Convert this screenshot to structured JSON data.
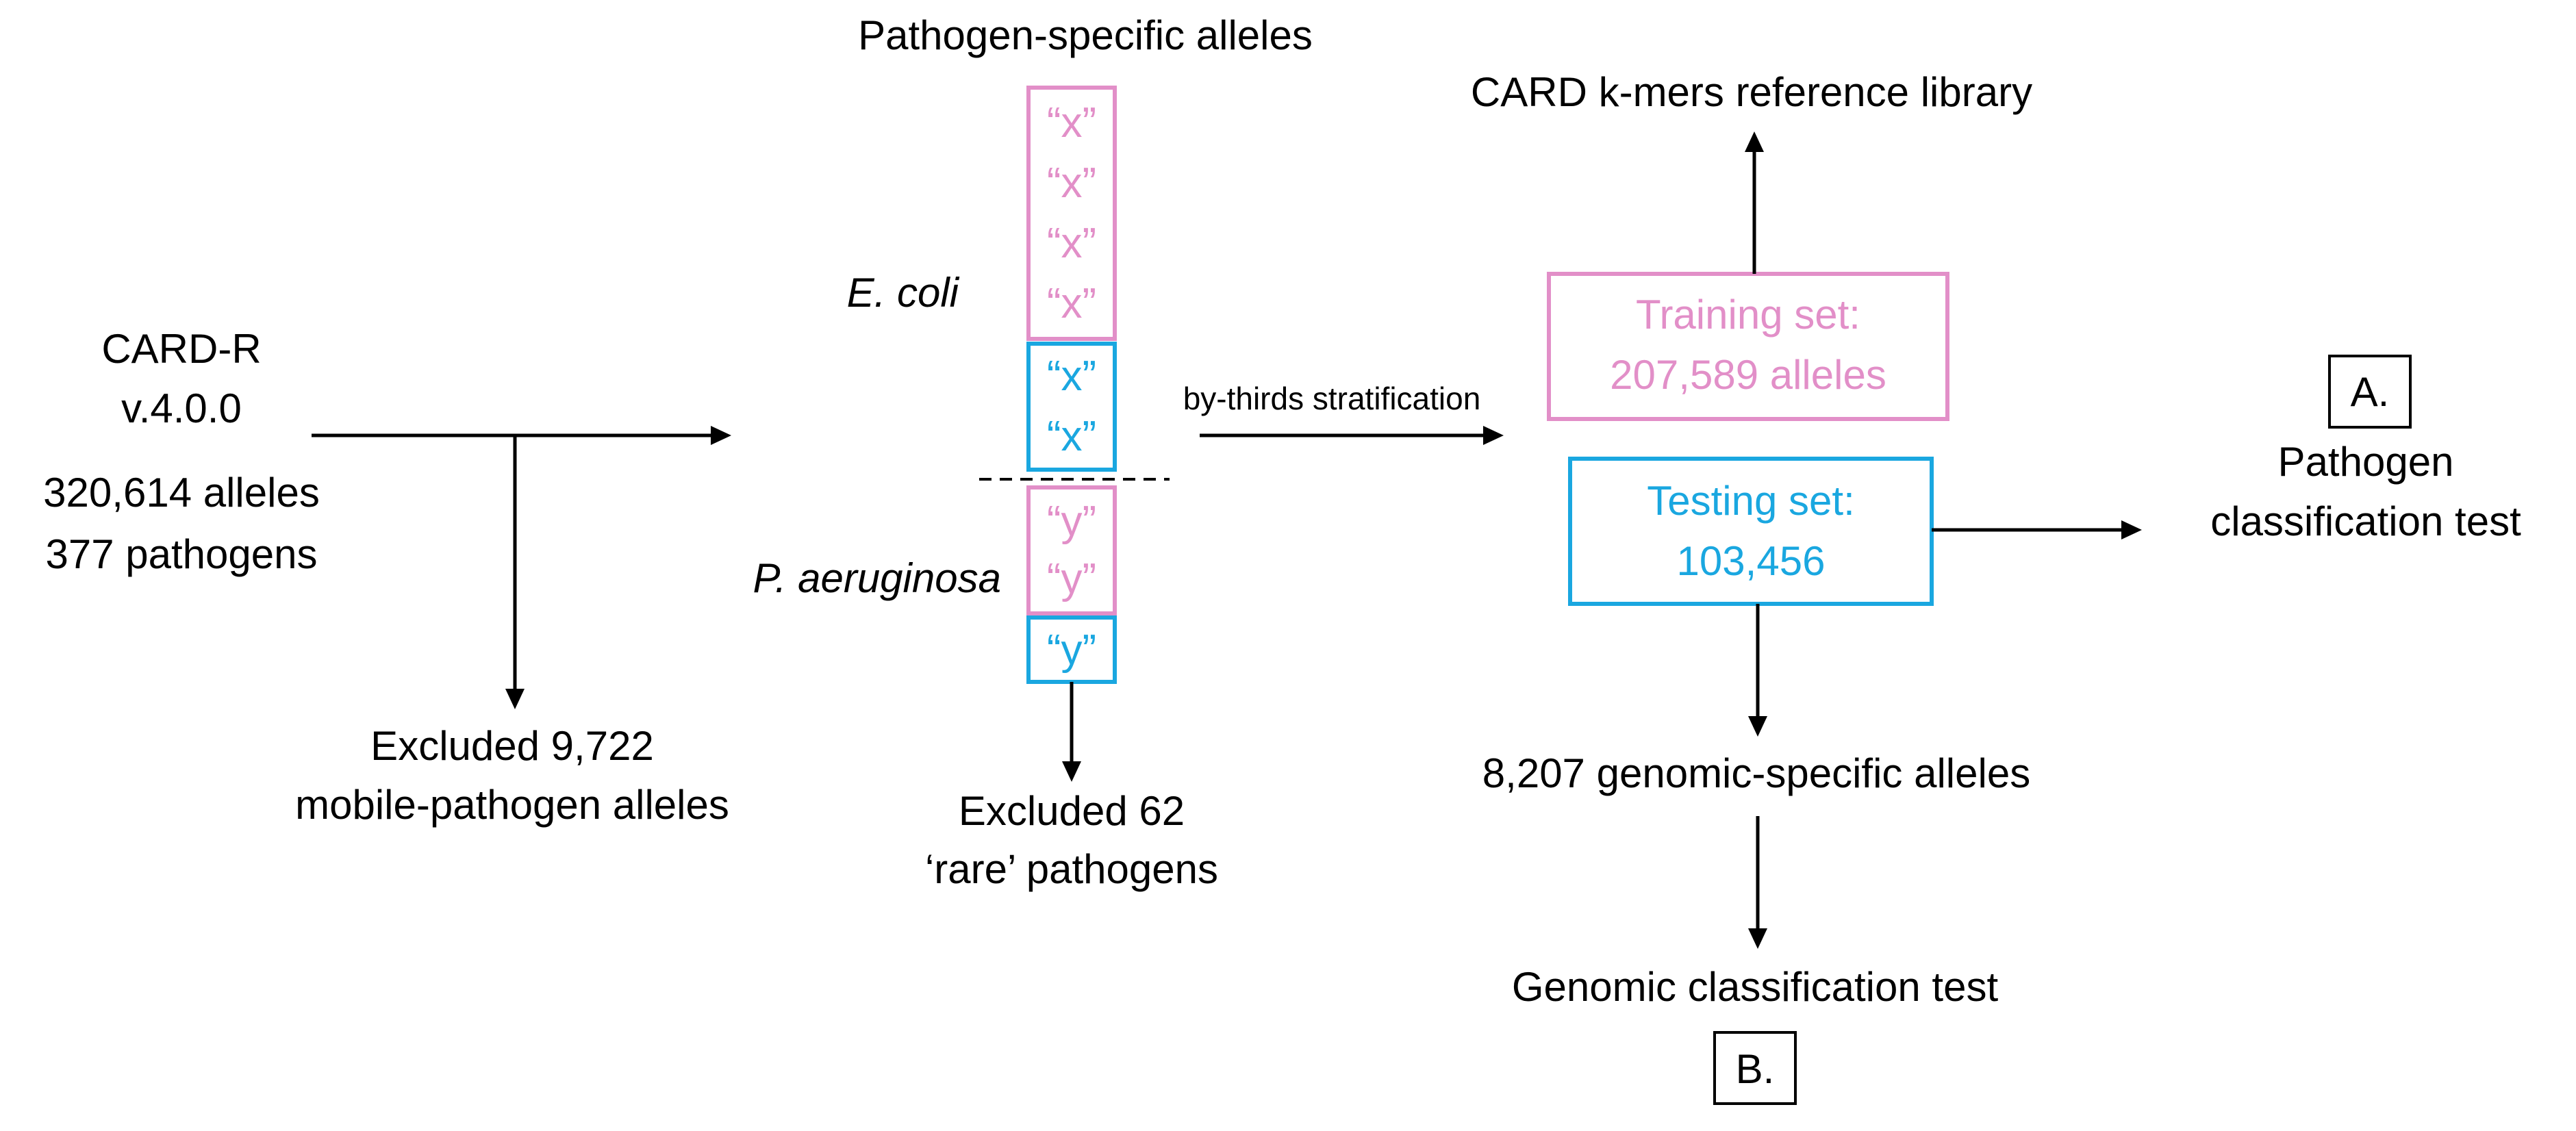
{
  "source": {
    "title_line1": "CARD-R",
    "title_line2": "v.4.0.0",
    "count_alleles": "320,614 alleles",
    "count_pathogens": "377 pathogens"
  },
  "excluded_mobile": {
    "line1": "Excluded 9,722",
    "line2": "mobile-pathogen alleles"
  },
  "pathogen_alleles": {
    "header": "Pathogen-specific alleles",
    "ecoli_label": "E. coli",
    "paeruginosa_label": "P. aeruginosa",
    "x_glyph": "“x”",
    "y_glyph": "“y”"
  },
  "excluded_rare": {
    "line1": "Excluded 62",
    "line2": "‘rare’ pathogens"
  },
  "stratification": {
    "label": "by-thirds stratification"
  },
  "training": {
    "line1": "Training set:",
    "line2": "207,589 alleles",
    "color": "#e28fc8"
  },
  "testing": {
    "line1": "Testing set:",
    "line2": "103,456",
    "color": "#1aa7e0"
  },
  "library": {
    "label": "CARD k-mers reference library"
  },
  "pathogen_test": {
    "badge": "A.",
    "line1": "Pathogen",
    "line2": "classification test"
  },
  "genomic_alleles": {
    "label": "8,207 genomic-specific alleles"
  },
  "genomic_test": {
    "label": "Genomic classification test",
    "badge": "B."
  }
}
